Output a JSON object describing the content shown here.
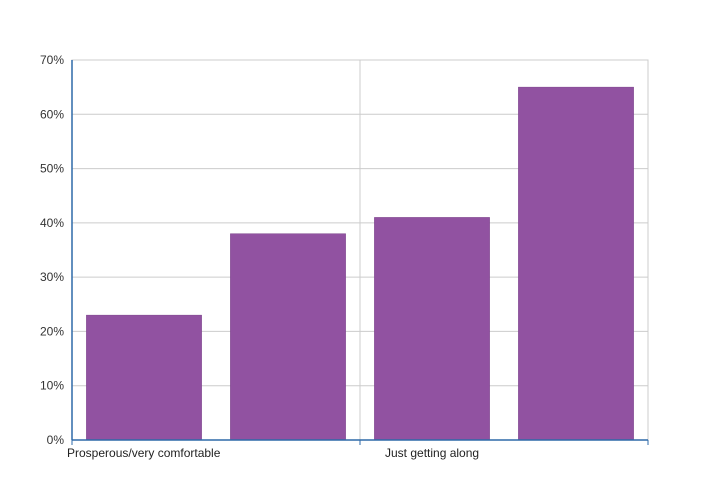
{
  "chart_data": {
    "type": "bar",
    "categories": [
      "Prosperous/very comfortable",
      "Just getting along"
    ],
    "series": [
      {
        "values": [
          23,
          41
        ]
      },
      {
        "values": [
          38,
          65
        ]
      }
    ],
    "yticks": [
      "0%",
      "10%",
      "20%",
      "30%",
      "40%",
      "50%",
      "60%",
      "70%"
    ],
    "ylim": [
      0,
      70
    ],
    "grid": true,
    "colors": {
      "bar": "#9152a1",
      "grid": "#cccccc",
      "axis": "#2e6aa8"
    }
  }
}
